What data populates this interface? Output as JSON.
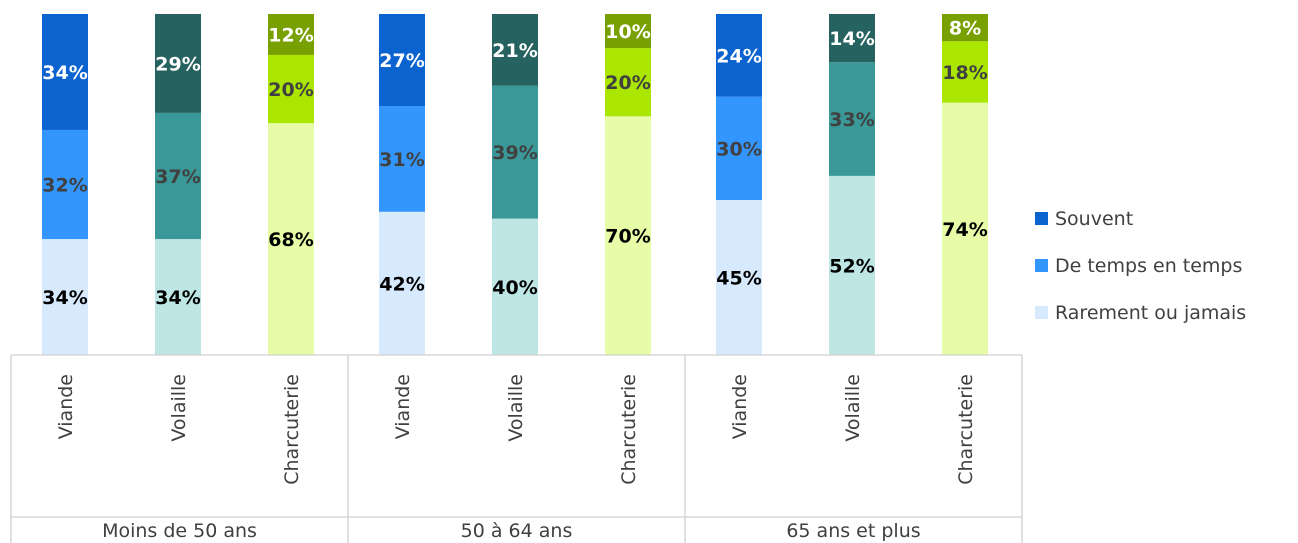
{
  "chart_data": {
    "type": "bar",
    "stacked": true,
    "percent": true,
    "ylim": [
      0,
      100
    ],
    "groups": [
      "Moins de 50 ans",
      "50 à 64 ans",
      "65 ans et plus"
    ],
    "categories": [
      "Viande",
      "Volaille",
      "Charcuterie"
    ],
    "series": [
      {
        "name": "Rarement ou jamais",
        "values": [
          [
            34,
            34,
            68
          ],
          [
            42,
            40,
            70
          ],
          [
            45,
            52,
            74
          ]
        ]
      },
      {
        "name": "De temps en temps",
        "values": [
          [
            32,
            37,
            20
          ],
          [
            31,
            39,
            20
          ],
          [
            30,
            33,
            18
          ]
        ]
      },
      {
        "name": "Souvent",
        "values": [
          [
            34,
            29,
            12
          ],
          [
            27,
            21,
            10
          ],
          [
            24,
            14,
            8
          ]
        ]
      }
    ],
    "colors": {
      "Viande": [
        "#d6e9fd",
        "#3396ff",
        "#0a63cf"
      ],
      "Volaille": [
        "#bde6e5",
        "#3a9898",
        "#26625f"
      ],
      "Charcuterie": [
        "#e6fca6",
        "#aae600",
        "#78a000"
      ]
    },
    "label_colors": {
      "Viande": [
        "#000000",
        "#404040",
        "#ffffff"
      ],
      "Volaille": [
        "#000000",
        "#404040",
        "#ffffff"
      ],
      "Charcuterie": [
        "#000000",
        "#404040",
        "#ffffff"
      ]
    },
    "legend": {
      "position": "right",
      "items": [
        {
          "label": "Souvent",
          "color": "#0a63cf"
        },
        {
          "label": "De temps en temps",
          "color": "#3396ff"
        },
        {
          "label": "Rarement ou jamais",
          "color": "#d6e9fd"
        }
      ]
    },
    "value_suffix": "%"
  }
}
